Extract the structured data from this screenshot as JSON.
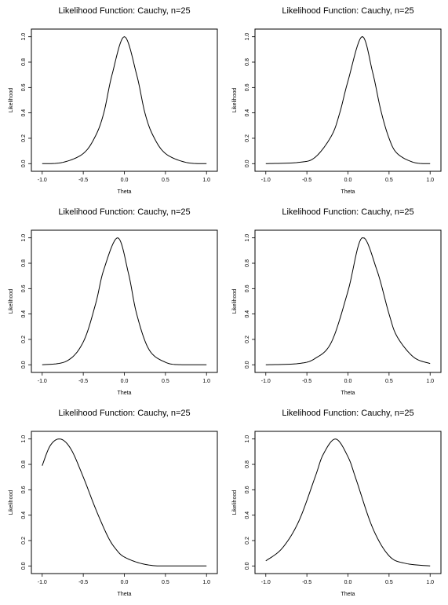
{
  "chart_data": [
    {
      "type": "line",
      "title": "Likelihood Function: Cauchy, n=25",
      "xlabel": "Theta",
      "ylabel": "Likelihood",
      "xlim": [
        -1.0,
        1.0
      ],
      "ylim": [
        0.0,
        1.0
      ],
      "xticks": [
        "-1.0",
        "-0.5",
        "0.0",
        "0.5",
        "1.0"
      ],
      "yticks": [
        "0.0",
        "0.2",
        "0.4",
        "0.6",
        "0.8",
        "1.0"
      ],
      "x": [
        -1.0,
        -0.75,
        -0.5,
        -0.35,
        -0.25,
        -0.15,
        0.0,
        0.15,
        0.25,
        0.35,
        0.5,
        0.75,
        1.0
      ],
      "y": [
        0.0,
        0.01,
        0.08,
        0.22,
        0.4,
        0.7,
        1.0,
        0.7,
        0.4,
        0.22,
        0.08,
        0.01,
        0.0
      ]
    },
    {
      "type": "line",
      "title": "Likelihood Function: Cauchy, n=25",
      "xlabel": "Theta",
      "ylabel": "Likelihood",
      "xlim": [
        -1.0,
        1.0
      ],
      "ylim": [
        0.0,
        1.0
      ],
      "xticks": [
        "-1.0",
        "-0.5",
        "0.0",
        "0.5",
        "1.0"
      ],
      "yticks": [
        "0.0",
        "0.2",
        "0.4",
        "0.6",
        "0.8",
        "1.0"
      ],
      "x": [
        -1.0,
        -0.6,
        -0.4,
        -0.2,
        -0.1,
        0.0,
        0.17,
        0.3,
        0.4,
        0.5,
        0.6,
        0.8,
        1.0
      ],
      "y": [
        0.0,
        0.01,
        0.05,
        0.22,
        0.4,
        0.65,
        1.0,
        0.72,
        0.42,
        0.2,
        0.08,
        0.01,
        0.0
      ]
    },
    {
      "type": "line",
      "title": "Likelihood Function: Cauchy, n=25",
      "xlabel": "Theta",
      "ylabel": "Likelihood",
      "xlim": [
        -1.0,
        1.0
      ],
      "ylim": [
        0.0,
        1.0
      ],
      "xticks": [
        "-1.0",
        "-0.5",
        "0.0",
        "0.5",
        "1.0"
      ],
      "yticks": [
        "0.0",
        "0.2",
        "0.4",
        "0.6",
        "0.8",
        "1.0"
      ],
      "x": [
        -1.0,
        -0.7,
        -0.5,
        -0.35,
        -0.25,
        -0.08,
        0.05,
        0.15,
        0.3,
        0.5,
        0.7,
        1.0
      ],
      "y": [
        0.0,
        0.03,
        0.18,
        0.48,
        0.75,
        1.0,
        0.72,
        0.4,
        0.12,
        0.02,
        0.0,
        0.0
      ]
    },
    {
      "type": "line",
      "title": "Likelihood Function: Cauchy, n=25",
      "xlabel": "Theta",
      "ylabel": "Likelihood",
      "xlim": [
        -1.0,
        1.0
      ],
      "ylim": [
        0.0,
        1.0
      ],
      "xticks": [
        "-1.0",
        "-0.5",
        "0.0",
        "0.5",
        "1.0"
      ],
      "yticks": [
        "0.0",
        "0.2",
        "0.4",
        "0.6",
        "0.8",
        "1.0"
      ],
      "x": [
        -1.0,
        -0.6,
        -0.4,
        -0.2,
        0.0,
        0.17,
        0.35,
        0.5,
        0.6,
        0.8,
        1.0
      ],
      "y": [
        0.0,
        0.01,
        0.05,
        0.18,
        0.58,
        1.0,
        0.75,
        0.4,
        0.22,
        0.06,
        0.01
      ]
    },
    {
      "type": "line",
      "title": "Likelihood Function: Cauchy, n=25",
      "xlabel": "Theta",
      "ylabel": "Likelihood",
      "xlim": [
        -1.0,
        1.0
      ],
      "ylim": [
        0.0,
        1.0
      ],
      "xticks": [
        "-1.0",
        "-0.5",
        "0.0",
        "0.5",
        "1.0"
      ],
      "yticks": [
        "0.0",
        "0.2",
        "0.4",
        "0.6",
        "0.8",
        "1.0"
      ],
      "x": [
        -1.0,
        -0.9,
        -0.78,
        -0.65,
        -0.5,
        -0.35,
        -0.2,
        -0.1,
        0.0,
        0.2,
        0.4,
        0.6,
        1.0
      ],
      "y": [
        0.79,
        0.95,
        1.0,
        0.92,
        0.7,
        0.45,
        0.23,
        0.13,
        0.07,
        0.02,
        0.0,
        0.0,
        0.0
      ]
    },
    {
      "type": "line",
      "title": "Likelihood Function: Cauchy, n=25",
      "xlabel": "Theta",
      "ylabel": "Likelihood",
      "xlim": [
        -1.0,
        1.0
      ],
      "ylim": [
        0.0,
        1.0
      ],
      "xticks": [
        "-1.0",
        "-0.5",
        "0.0",
        "0.5",
        "1.0"
      ],
      "yticks": [
        "0.0",
        "0.2",
        "0.4",
        "0.6",
        "0.8",
        "1.0"
      ],
      "x": [
        -1.0,
        -0.8,
        -0.6,
        -0.4,
        -0.3,
        -0.15,
        0.0,
        0.1,
        0.3,
        0.5,
        0.7,
        1.0
      ],
      "y": [
        0.04,
        0.14,
        0.35,
        0.7,
        0.88,
        1.0,
        0.86,
        0.68,
        0.3,
        0.08,
        0.02,
        0.0
      ]
    }
  ]
}
